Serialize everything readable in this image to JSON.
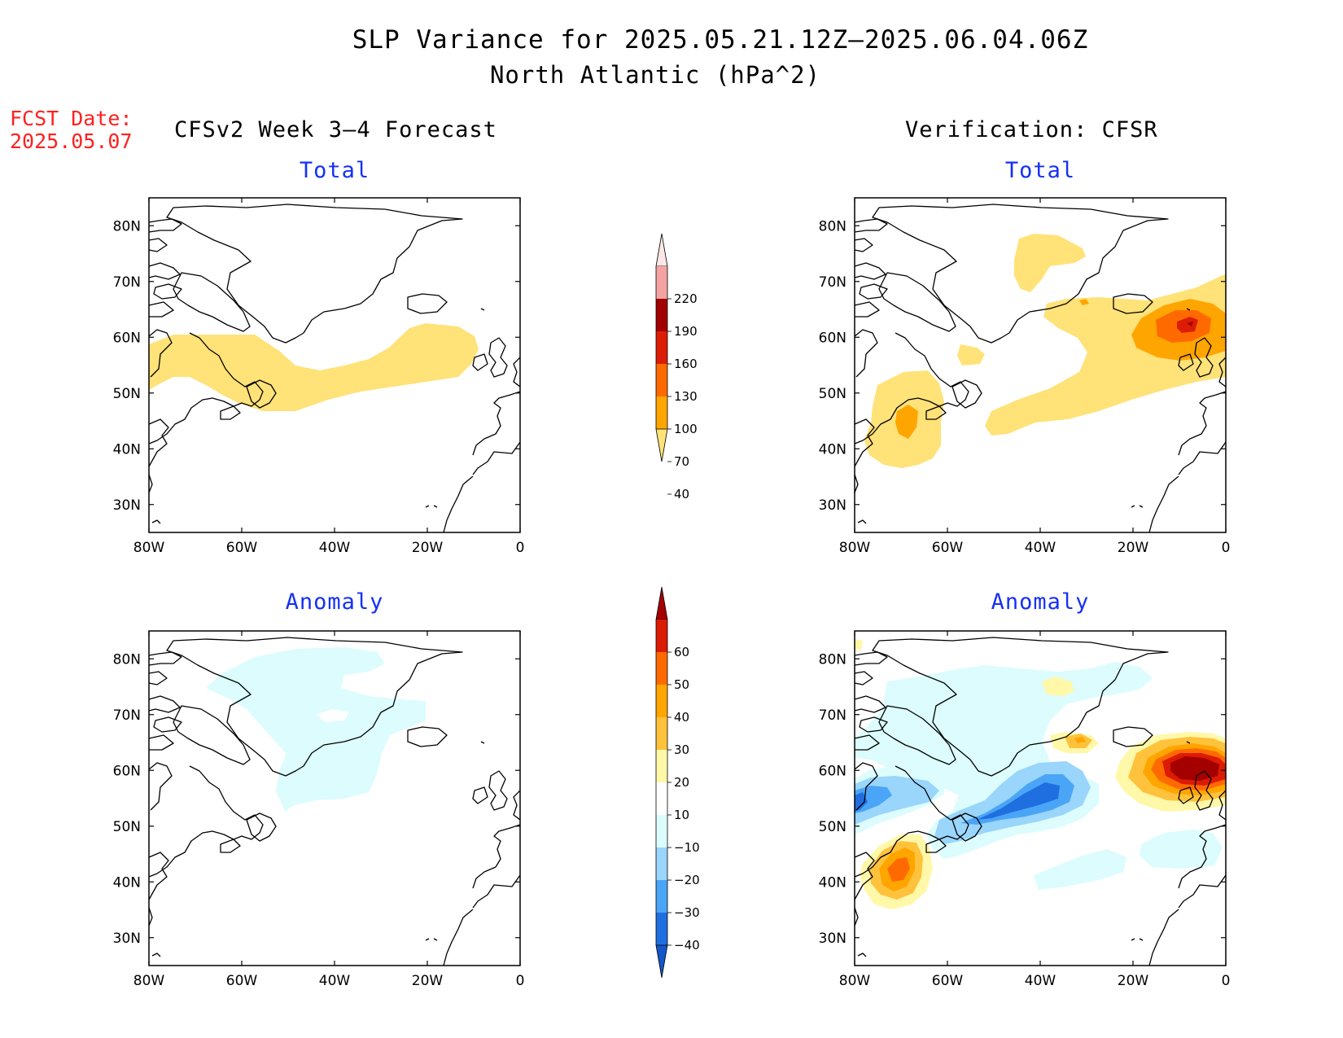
{
  "header": {
    "title": "SLP Variance for 2025.05.21.12Z–2025.06.04.06Z",
    "subtitle": "North Atlantic (hPa^2)",
    "fcst_label": "FCST Date:",
    "fcst_date": "2025.05.07"
  },
  "columns": {
    "left": "CFSv2 Week 3–4 Forecast",
    "right": "Verification: CFSR"
  },
  "panels": [
    {
      "id": "fcst-total",
      "subtitle": "Total"
    },
    {
      "id": "verif-total",
      "subtitle": "Total"
    },
    {
      "id": "fcst-anom",
      "subtitle": "Anomaly"
    },
    {
      "id": "verif-anom",
      "subtitle": "Anomaly"
    }
  ],
  "map_axes": {
    "lat_labels": [
      "80N",
      "70N",
      "60N",
      "50N",
      "40N",
      "30N"
    ],
    "lon_labels": [
      "80W",
      "60W",
      "40W",
      "20W",
      "0"
    ],
    "lat_range": [
      25,
      85
    ],
    "lon_range": [
      -80,
      0
    ]
  },
  "colorbars": {
    "total": {
      "labels": [
        "220",
        "190",
        "160",
        "130",
        "100",
        "70",
        "40"
      ],
      "colors": [
        "#fde6e6",
        "#f4a3a3",
        "#a00000",
        "#dd1c05",
        "#ff6a00",
        "#ffa500",
        "#ffe278"
      ]
    },
    "anomaly": {
      "labels": [
        "60",
        "50",
        "40",
        "30",
        "20",
        "10",
        "−10",
        "−20",
        "−30",
        "−40"
      ],
      "colors": [
        "#a50000",
        "#dc1b04",
        "#ff6a00",
        "#ffa500",
        "#ffc23c",
        "#fff8a8",
        "#ffffff",
        "#dcfcfd",
        "#9ad5fb",
        "#4aa5f6",
        "#1f6fe0",
        "#1357c8"
      ]
    }
  },
  "colors": {
    "fcst_date": "#ff2020",
    "subtitle": "#1530f5"
  }
}
